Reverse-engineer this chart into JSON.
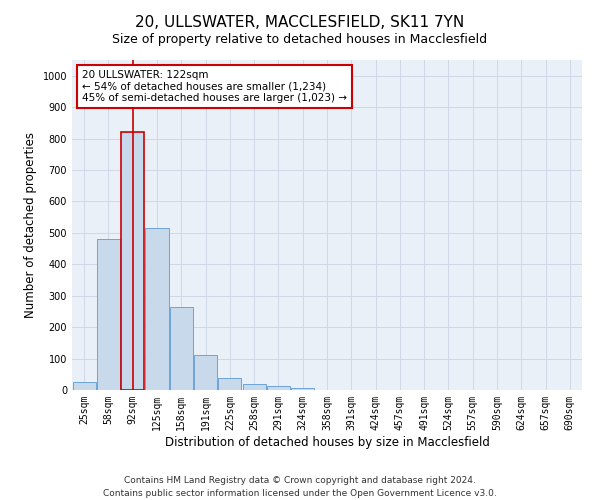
{
  "title": "20, ULLSWATER, MACCLESFIELD, SK11 7YN",
  "subtitle": "Size of property relative to detached houses in Macclesfield",
  "xlabel": "Distribution of detached houses by size in Macclesfield",
  "ylabel": "Number of detached properties",
  "categories": [
    "25sqm",
    "58sqm",
    "92sqm",
    "125sqm",
    "158sqm",
    "191sqm",
    "225sqm",
    "258sqm",
    "291sqm",
    "324sqm",
    "358sqm",
    "391sqm",
    "424sqm",
    "457sqm",
    "491sqm",
    "524sqm",
    "557sqm",
    "590sqm",
    "624sqm",
    "657sqm",
    "690sqm"
  ],
  "values": [
    25,
    480,
    820,
    515,
    265,
    110,
    37,
    18,
    12,
    7,
    0,
    0,
    0,
    0,
    0,
    0,
    0,
    0,
    0,
    0,
    0
  ],
  "bar_color": "#c9d9ec",
  "bar_edgecolor": "#5b9bd5",
  "highlight_index": 2,
  "highlight_edgecolor": "#cc0000",
  "vline_color": "#cc0000",
  "annotation_box_text": "20 ULLSWATER: 122sqm\n← 54% of detached houses are smaller (1,234)\n45% of semi-detached houses are larger (1,023) →",
  "ylim": [
    0,
    1050
  ],
  "yticks": [
    0,
    100,
    200,
    300,
    400,
    500,
    600,
    700,
    800,
    900,
    1000
  ],
  "footer_line1": "Contains HM Land Registry data © Crown copyright and database right 2024.",
  "footer_line2": "Contains public sector information licensed under the Open Government Licence v3.0.",
  "bg_color": "#ffffff",
  "grid_color": "#d0d8e8",
  "title_fontsize": 11,
  "subtitle_fontsize": 9,
  "axis_label_fontsize": 8.5,
  "tick_fontsize": 7,
  "footer_fontsize": 6.5,
  "annotation_fontsize": 7.5
}
